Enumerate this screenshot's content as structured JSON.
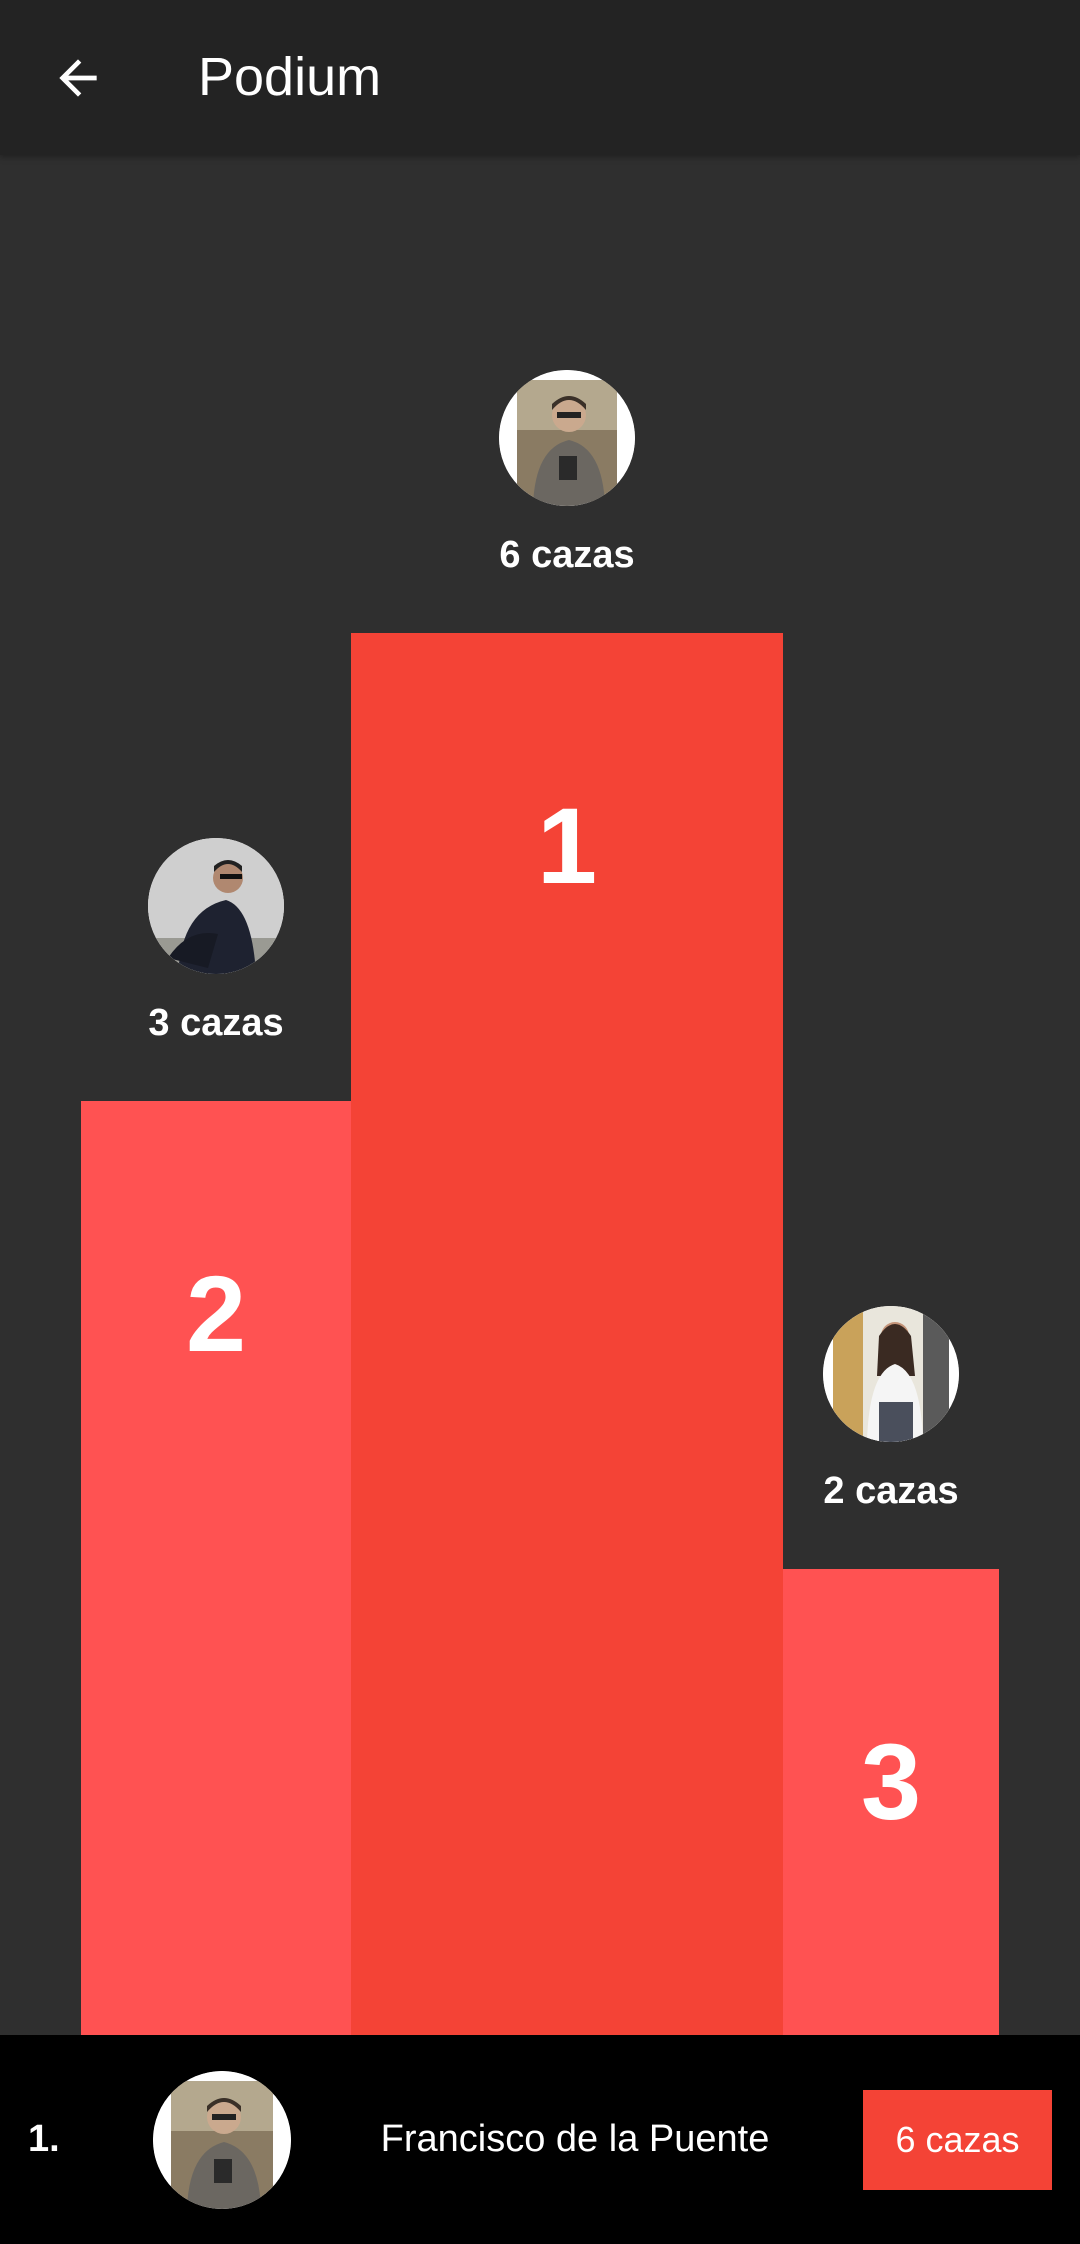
{
  "appbar": {
    "title": "Podium",
    "back_icon": "arrow-left-icon"
  },
  "podium": [
    {
      "rank": "1",
      "count": "6 cazas",
      "avatar_icon": "avatar-photo"
    },
    {
      "rank": "2",
      "count": "3 cazas",
      "avatar_icon": "avatar-photo"
    },
    {
      "rank": "3",
      "count": "2 cazas",
      "avatar_icon": "avatar-photo"
    }
  ],
  "leader_row": {
    "rank": "1.",
    "name": "Francisco de la Puente",
    "count": "6 cazas"
  },
  "colors": {
    "background": "#2f2f2f",
    "appbar": "#232323",
    "first_bar": "#f44336",
    "other_bars": "#ff5252",
    "bottom_bar": "#000000"
  }
}
